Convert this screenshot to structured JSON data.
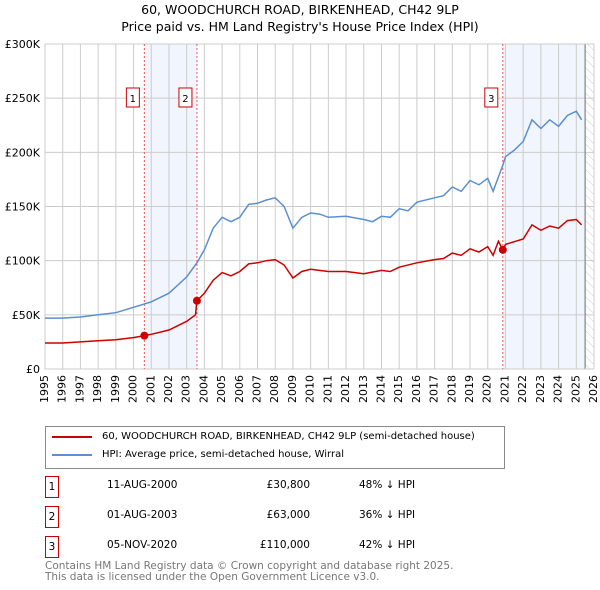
{
  "chart_data": {
    "type": "line",
    "title": "60, WOODCHURCH ROAD, BIRKENHEAD, CH42 9LP",
    "subtitle": "Price paid vs. HM Land Registry's House Price Index (HPI)",
    "xlim": [
      1995,
      2026
    ],
    "ylim": [
      0,
      300000
    ],
    "x_ticks": [
      "1995",
      "1996",
      "1997",
      "1998",
      "1999",
      "2000",
      "2001",
      "2002",
      "2003",
      "2004",
      "2005",
      "2006",
      "2007",
      "2008",
      "2009",
      "2010",
      "2011",
      "2012",
      "2013",
      "2014",
      "2015",
      "2016",
      "2017",
      "2018",
      "2019",
      "2020",
      "2021",
      "2022",
      "2023",
      "2024",
      "2025",
      "2026"
    ],
    "y_ticks": [
      {
        "v": 0,
        "label": "£0"
      },
      {
        "v": 50000,
        "label": "£50K"
      },
      {
        "v": 100000,
        "label": "£100K"
      },
      {
        "v": 150000,
        "label": "£150K"
      },
      {
        "v": 200000,
        "label": "£200K"
      },
      {
        "v": 250000,
        "label": "£250K"
      },
      {
        "v": 300000,
        "label": "£300K"
      }
    ],
    "grid": true,
    "shaded_ranges": [
      [
        2000.61,
        2003.58
      ],
      [
        2020.85,
        2025.5
      ]
    ],
    "hatched_from": 2025.5,
    "series": [
      {
        "name": "60, WOODCHURCH ROAD, BIRKENHEAD, CH42 9LP (semi-detached house)",
        "color": "#cc0000",
        "x": [
          1995,
          1996,
          1997,
          1998,
          1999,
          2000,
          2000.61,
          2001,
          2002,
          2003,
          2003.5,
          2003.58,
          2004,
          2004.5,
          2005,
          2005.5,
          2006,
          2006.5,
          2007,
          2007.5,
          2008,
          2008.5,
          2009,
          2009.5,
          2010,
          2011,
          2012,
          2013,
          2014,
          2014.5,
          2015,
          2016,
          2017,
          2017.5,
          2018,
          2018.5,
          2019,
          2019.5,
          2020,
          2020.3,
          2020.6,
          2020.85,
          2021,
          2022,
          2022.5,
          2023,
          2023.5,
          2024,
          2024.5,
          2025,
          2025.3
        ],
        "y": [
          24000,
          24000,
          25000,
          26000,
          27000,
          29000,
          30800,
          32000,
          36000,
          44000,
          50000,
          63000,
          70000,
          82000,
          89000,
          86000,
          90000,
          97000,
          98000,
          100000,
          101000,
          96000,
          84000,
          90000,
          92000,
          90000,
          90000,
          88000,
          91000,
          90000,
          94000,
          98000,
          101000,
          102000,
          107000,
          105000,
          111000,
          108000,
          113000,
          105000,
          118000,
          110000,
          115000,
          120000,
          133000,
          128000,
          132000,
          130000,
          137000,
          138000,
          133000
        ]
      },
      {
        "name": "HPI: Average price, semi-detached house, Wirral",
        "color": "#5b8fd0",
        "x": [
          1995,
          1996,
          1997,
          1998,
          1999,
          2000,
          2000.61,
          2001,
          2002,
          2003,
          2003.58,
          2004,
          2004.5,
          2005,
          2005.5,
          2006,
          2006.5,
          2007,
          2007.5,
          2008,
          2008.5,
          2009,
          2009.5,
          2010,
          2010.5,
          2011,
          2012,
          2013,
          2013.5,
          2014,
          2014.5,
          2015,
          2015.5,
          2016,
          2017,
          2017.5,
          2018,
          2018.5,
          2019,
          2019.5,
          2020,
          2020.3,
          2020.85,
          2021,
          2021.5,
          2022,
          2022.5,
          2023,
          2023.5,
          2024,
          2024.5,
          2025,
          2025.3
        ],
        "y": [
          47000,
          47000,
          48000,
          50000,
          52000,
          57000,
          60000,
          62000,
          70000,
          85000,
          98000,
          110000,
          130000,
          140000,
          136000,
          140000,
          152000,
          153000,
          156000,
          158000,
          150000,
          130000,
          140000,
          144000,
          143000,
          140000,
          141000,
          138000,
          136000,
          141000,
          140000,
          148000,
          146000,
          154000,
          158000,
          160000,
          168000,
          164000,
          174000,
          170000,
          176000,
          164000,
          188000,
          196000,
          202000,
          210000,
          230000,
          222000,
          230000,
          224000,
          234000,
          238000,
          230000
        ]
      }
    ],
    "sales": [
      {
        "id": "1",
        "x": 2000.61,
        "date": "11-AUG-2000",
        "price_value": 30800,
        "price": "£30,800",
        "hpi": "48% ↓ HPI"
      },
      {
        "id": "2",
        "x": 2003.58,
        "date": "01-AUG-2003",
        "price_value": 63000,
        "price": "£63,000",
        "hpi": "36% ↓ HPI"
      },
      {
        "id": "3",
        "x": 2020.85,
        "date": "05-NOV-2020",
        "price_value": 110000,
        "price": "£110,000",
        "hpi": "42% ↓ HPI"
      }
    ]
  },
  "legend": {
    "red": "60, WOODCHURCH ROAD, BIRKENHEAD, CH42 9LP (semi-detached house)",
    "blue": "HPI: Average price, semi-detached house, Wirral"
  },
  "footer": {
    "line1": "Contains HM Land Registry data © Crown copyright and database right 2025.",
    "line2": "This data is licensed under the Open Government Licence v3.0."
  }
}
